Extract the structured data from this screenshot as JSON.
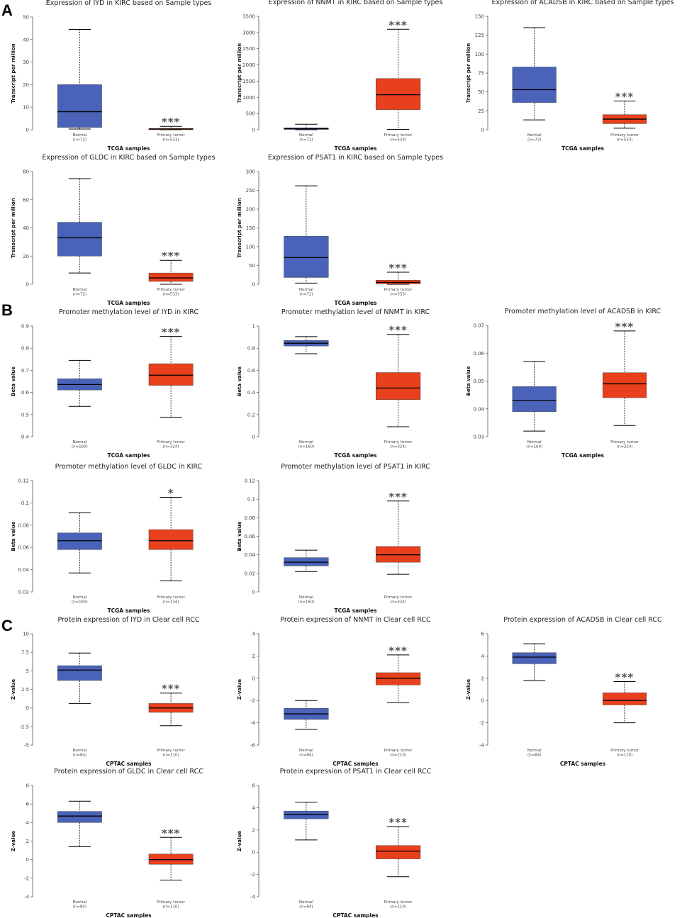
{
  "figure": {
    "panel_labels": [
      "A",
      "B",
      "C"
    ],
    "colors": {
      "normal": "#4a63b8",
      "tumor": "#e8401c",
      "median": "#000000"
    }
  },
  "chart_data": [
    {
      "type": "box",
      "panel": "A",
      "title": "Expression of IYD in KIRC based on Sample types",
      "ylabel": "Transcript per million",
      "xlabel": "TCGA samples",
      "ylim": [
        0,
        50
      ],
      "yticks": [
        0,
        10,
        20,
        30,
        40,
        50
      ],
      "categories": [
        "Normal",
        "Primary tumor"
      ],
      "ns": [
        "(n=72)",
        "(n=533)"
      ],
      "boxes": [
        {
          "min": 0.3,
          "q1": 1,
          "median": 8,
          "q3": 20,
          "max": 44.5
        },
        {
          "min": 0,
          "q1": 0,
          "median": 0.3,
          "q3": 0.6,
          "max": 1.5
        }
      ],
      "significance": "***"
    },
    {
      "type": "box",
      "panel": "A",
      "title": "Expression of NNMT in KIRC based on Sample types",
      "ylabel": "Transcript per million",
      "xlabel": "TCGA samples",
      "ylim": [
        0,
        3500
      ],
      "yticks": [
        0,
        500,
        1000,
        1500,
        2000,
        2500,
        3000,
        3500
      ],
      "categories": [
        "Normal",
        "Primary tumor"
      ],
      "ns": [
        "(n=72)",
        "(n=533)"
      ],
      "boxes": [
        {
          "min": 0,
          "q1": 10,
          "median": 30,
          "q3": 60,
          "max": 170
        },
        {
          "min": 10,
          "q1": 620,
          "median": 1080,
          "q3": 1580,
          "max": 3100
        }
      ],
      "significance": "***"
    },
    {
      "type": "box",
      "panel": "A",
      "title": "Expression of ACADSB in KIRC based on Sample types",
      "ylabel": "Transcript per million",
      "xlabel": "TCGA samples",
      "ylim": [
        0,
        150
      ],
      "yticks": [
        0,
        25,
        50,
        75,
        100,
        125,
        150
      ],
      "categories": [
        "Normal",
        "Primary tumor"
      ],
      "ns": [
        "(n=72)",
        "(n=533)"
      ],
      "boxes": [
        {
          "min": 13,
          "q1": 36,
          "median": 53,
          "q3": 83,
          "max": 135
        },
        {
          "min": 2,
          "q1": 8,
          "median": 14,
          "q3": 20,
          "max": 38
        }
      ],
      "significance": "***"
    },
    {
      "type": "box",
      "panel": "A",
      "title": "Expression of GLDC in KIRC based on Sample types",
      "ylabel": "Transcript per million",
      "xlabel": "TCGA samples",
      "ylim": [
        0,
        80
      ],
      "yticks": [
        0,
        20,
        40,
        60,
        80
      ],
      "categories": [
        "Normal",
        "Primary tumor"
      ],
      "ns": [
        "(n=72)",
        "(n=533)"
      ],
      "boxes": [
        {
          "min": 8,
          "q1": 20,
          "median": 33,
          "q3": 44,
          "max": 75
        },
        {
          "min": 0,
          "q1": 2,
          "median": 4.5,
          "q3": 8,
          "max": 17
        }
      ],
      "significance": "***"
    },
    {
      "type": "box",
      "panel": "A",
      "title": "Expression of PSAT1 in KIRC based on Sample types",
      "ylabel": "Transcript per million",
      "xlabel": "TCGA samples",
      "ylim": [
        0,
        300
      ],
      "yticks": [
        0,
        50,
        100,
        150,
        200,
        250,
        300
      ],
      "categories": [
        "Normal",
        "Primary tumor"
      ],
      "ns": [
        "(n=72)",
        "(n=533)"
      ],
      "boxes": [
        {
          "min": 3,
          "q1": 18,
          "median": 71,
          "q3": 128,
          "max": 262
        },
        {
          "min": 0,
          "q1": 1,
          "median": 5,
          "q3": 11,
          "max": 32
        }
      ],
      "significance": "***"
    },
    {
      "type": "box",
      "panel": "B",
      "title": "Promoter methylation level of IYD in KIRC",
      "ylabel": "Beta value",
      "xlabel": "TCGA samples",
      "ylim": [
        0.4,
        0.9
      ],
      "yticks": [
        0.4,
        0.5,
        0.6,
        0.7,
        0.8,
        0.9
      ],
      "categories": [
        "Normal",
        "Primary tumor"
      ],
      "ns": [
        "(n=160)",
        "(n=324)"
      ],
      "boxes": [
        {
          "min": 0.537,
          "q1": 0.611,
          "median": 0.636,
          "q3": 0.662,
          "max": 0.745
        },
        {
          "min": 0.488,
          "q1": 0.632,
          "median": 0.678,
          "q3": 0.73,
          "max": 0.853
        }
      ],
      "significance": "***"
    },
    {
      "type": "box",
      "panel": "B",
      "title": "Promoter methylation level of NNMT in KIRC",
      "ylabel": "Beta value",
      "xlabel": "TCGA samples",
      "ylim": [
        0,
        1
      ],
      "yticks": [
        0,
        0.2,
        0.4,
        0.6,
        0.8,
        1
      ],
      "categories": [
        "Normal",
        "Primary tumor"
      ],
      "ns": [
        "(n=160)",
        "(n=324)"
      ],
      "boxes": [
        {
          "min": 0.75,
          "q1": 0.82,
          "median": 0.845,
          "q3": 0.87,
          "max": 0.905
        },
        {
          "min": 0.09,
          "q1": 0.335,
          "median": 0.44,
          "q3": 0.58,
          "max": 0.925
        }
      ],
      "significance": "***"
    },
    {
      "type": "box",
      "panel": "B",
      "title": "Promoter methylation level of ACADSB in KIRC",
      "ylabel": "Beta value",
      "xlabel": "TCGA samples",
      "ylim": [
        0.03,
        0.07
      ],
      "yticks": [
        0.03,
        0.04,
        0.05,
        0.06,
        0.07
      ],
      "categories": [
        "Normal",
        "Primary tumor"
      ],
      "ns": [
        "(n=160)",
        "(n=324)"
      ],
      "boxes": [
        {
          "min": 0.032,
          "q1": 0.039,
          "median": 0.043,
          "q3": 0.048,
          "max": 0.057
        },
        {
          "min": 0.034,
          "q1": 0.044,
          "median": 0.049,
          "q3": 0.053,
          "max": 0.068
        }
      ],
      "significance": "***"
    },
    {
      "type": "box",
      "panel": "B",
      "title": "Promoter methylation level of GLDC in KIRC",
      "ylabel": "Beta value",
      "xlabel": "TCGA samples",
      "ylim": [
        0.02,
        0.12
      ],
      "yticks": [
        0.02,
        0.04,
        0.06,
        0.08,
        0.1,
        0.12
      ],
      "categories": [
        "Normal",
        "Primary tumor"
      ],
      "ns": [
        "(n=160)",
        "(n=324)"
      ],
      "boxes": [
        {
          "min": 0.037,
          "q1": 0.058,
          "median": 0.066,
          "q3": 0.073,
          "max": 0.091
        },
        {
          "min": 0.03,
          "q1": 0.058,
          "median": 0.066,
          "q3": 0.076,
          "max": 0.105
        }
      ],
      "significance": "*"
    },
    {
      "type": "box",
      "panel": "B",
      "title": "Promoter methylation level of PSAT1 in KIRC",
      "ylabel": "Beta value",
      "xlabel": "TCGA samples",
      "ylim": [
        0,
        0.12
      ],
      "yticks": [
        0,
        0.02,
        0.04,
        0.06,
        0.08,
        0.1,
        0.12
      ],
      "categories": [
        "Normal",
        "Primary tumor"
      ],
      "ns": [
        "(n=160)",
        "(n=324)"
      ],
      "boxes": [
        {
          "min": 0.022,
          "q1": 0.028,
          "median": 0.032,
          "q3": 0.037,
          "max": 0.045
        },
        {
          "min": 0.019,
          "q1": 0.032,
          "median": 0.04,
          "q3": 0.049,
          "max": 0.098
        }
      ],
      "significance": "***"
    },
    {
      "type": "box",
      "panel": "C",
      "title": "Protein expression of IYD in Clear cell RCC",
      "ylabel": "Z-value",
      "xlabel": "CPTAC samples",
      "ylim": [
        -5,
        10
      ],
      "yticks": [
        -5,
        -2.5,
        0,
        2.5,
        5,
        7.5,
        10
      ],
      "categories": [
        "Normal",
        "Primary tumor"
      ],
      "ns": [
        "(n=84)",
        "(n=110)"
      ],
      "boxes": [
        {
          "min": 0.6,
          "q1": 3.7,
          "median": 5.1,
          "q3": 5.7,
          "max": 7.4
        },
        {
          "min": -2.4,
          "q1": -0.6,
          "median": 0,
          "q3": 0.6,
          "max": 2
        }
      ],
      "significance": "***"
    },
    {
      "type": "box",
      "panel": "C",
      "title": "Protein expression of NNMT in Clear cell RCC",
      "ylabel": "Z-value",
      "xlabel": "CPTAC samples",
      "ylim": [
        -6,
        4
      ],
      "yticks": [
        -6,
        -4,
        -2,
        0,
        2,
        4
      ],
      "categories": [
        "Normal",
        "Primary tumor"
      ],
      "ns": [
        "(n=84)",
        "(n=110)"
      ],
      "boxes": [
        {
          "min": -4.6,
          "q1": -3.7,
          "median": -3.2,
          "q3": -2.7,
          "max": -2
        },
        {
          "min": -2.2,
          "q1": -0.6,
          "median": 0,
          "q3": 0.5,
          "max": 2.1
        }
      ],
      "significance": "***"
    },
    {
      "type": "box",
      "panel": "C",
      "title": "Protein expression of ACADSB in Clear cell RCC",
      "ylabel": "Z-value",
      "xlabel": "CPTAC samples",
      "ylim": [
        -4,
        6
      ],
      "yticks": [
        -4,
        -2,
        0,
        2,
        4,
        6
      ],
      "categories": [
        "Normal",
        "Primary tumor"
      ],
      "ns": [
        "(n=84)",
        "(n=110)"
      ],
      "boxes": [
        {
          "min": 1.8,
          "q1": 3.3,
          "median": 3.9,
          "q3": 4.3,
          "max": 5.1
        },
        {
          "min": -2,
          "q1": -0.4,
          "median": 0,
          "q3": 0.7,
          "max": 1.7
        }
      ],
      "significance": "***"
    },
    {
      "type": "box",
      "panel": "C",
      "title": "Protein expression of GLDC in Clear cell RCC",
      "ylabel": "Z-value",
      "xlabel": "CPTAC samples",
      "ylim": [
        -4,
        8
      ],
      "yticks": [
        -4,
        -2,
        0,
        2,
        4,
        6,
        8
      ],
      "categories": [
        "Normal",
        "Primary tumor"
      ],
      "ns": [
        "(n=84)",
        "(n=110)"
      ],
      "boxes": [
        {
          "min": 1.4,
          "q1": 4,
          "median": 4.7,
          "q3": 5.2,
          "max": 6.3
        },
        {
          "min": -2.2,
          "q1": -0.5,
          "median": 0,
          "q3": 0.6,
          "max": 2.4
        }
      ],
      "significance": "***"
    },
    {
      "type": "box",
      "panel": "C",
      "title": "Protein expression of PSAT1 in Clear cell RCC",
      "ylabel": "Z-value",
      "xlabel": "CPTAC samples",
      "ylim": [
        -4,
        6
      ],
      "yticks": [
        -4,
        -2,
        0,
        2,
        4,
        6
      ],
      "categories": [
        "Normal",
        "Primary tumor"
      ],
      "ns": [
        "(n=84)",
        "(n=110)"
      ],
      "boxes": [
        {
          "min": 1.1,
          "q1": 3,
          "median": 3.4,
          "q3": 3.7,
          "max": 4.5
        },
        {
          "min": -2.2,
          "q1": -0.6,
          "median": 0.1,
          "q3": 0.6,
          "max": 2.3
        }
      ],
      "significance": "***"
    }
  ]
}
